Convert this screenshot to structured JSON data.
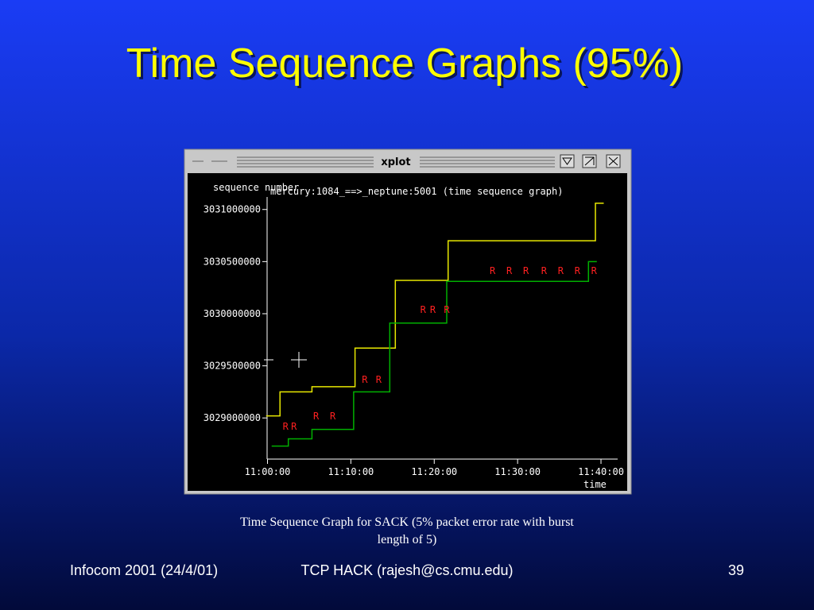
{
  "slide": {
    "title": "Time Sequence Graphs (95%)",
    "caption_line1": "Time Sequence Graph for SACK (5% packet error rate with burst",
    "caption_line2": "length of 5)",
    "footer_left": "Infocom 2001 (24/4/01)",
    "footer_center": "TCP HACK (rajesh@cs.cmu.edu)",
    "footer_right": "39",
    "window_title": "xplot"
  },
  "chart_data": {
    "type": "line",
    "title": "mercury:1084_==>_neptune:5001 (time sequence graph)",
    "y_label": "sequence number",
    "x_label": "time",
    "xlim": [
      "10:59:40",
      "11:42:00"
    ],
    "xticks": [
      "11:00:00",
      "11:10:00",
      "11:20:00",
      "11:30:00",
      "11:40:00"
    ],
    "ylim": [
      3028590000,
      3031120000
    ],
    "yticks": [
      3029000000,
      3029500000,
      3030000000,
      3030500000,
      3031000000
    ],
    "series": [
      {
        "color": "#e8e800",
        "x": [
          "10:59:50",
          "11:01:30",
          "11:01:30",
          "11:05:20",
          "11:05:20",
          "11:10:30",
          "11:10:30",
          "11:15:20",
          "11:15:20",
          "11:21:40",
          "11:21:40",
          "11:39:20",
          "11:39:20",
          "11:40:20"
        ],
        "values": [
          3029020000,
          3029020000,
          3029250000,
          3029250000,
          3029300000,
          3029300000,
          3029670000,
          3029670000,
          3030320000,
          3030320000,
          3030700000,
          3030700000,
          3031060000,
          3031060000
        ]
      },
      {
        "color": "#00b000",
        "x": [
          "11:00:30",
          "11:02:30",
          "11:02:30",
          "11:05:20",
          "11:05:20",
          "11:10:20",
          "11:10:20",
          "11:14:40",
          "11:14:40",
          "11:21:30",
          "11:21:30",
          "11:38:30",
          "11:38:30",
          "11:39:30"
        ],
        "values": [
          3028730000,
          3028730000,
          3028800000,
          3028800000,
          3028890000,
          3028890000,
          3029250000,
          3029250000,
          3029910000,
          3029910000,
          3030310000,
          3030310000,
          3030500000,
          3030500000
        ]
      }
    ],
    "retransmissions": {
      "marker_label": "R",
      "color": "#ff2020",
      "x": [
        "11:02:10",
        "11:03:10",
        "11:05:50",
        "11:07:50",
        "11:11:40",
        "11:13:20",
        "11:18:40",
        "11:19:50",
        "11:21:30",
        "11:27:00",
        "11:29:00",
        "11:31:00",
        "11:33:10",
        "11:35:10",
        "11:37:10",
        "11:39:10"
      ],
      "values": [
        3028916000,
        3028916000,
        3029015000,
        3029015000,
        3029366000,
        3029366000,
        3030038000,
        3030038000,
        3030038000,
        3030412000,
        3030412000,
        3030412000,
        3030412000,
        3030412000,
        3030412000,
        3030412000
      ]
    }
  }
}
